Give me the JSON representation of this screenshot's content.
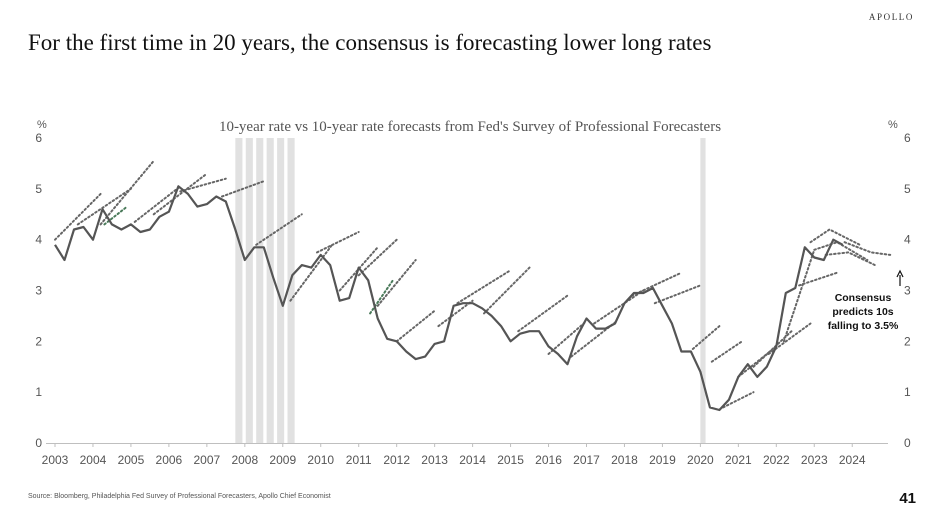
{
  "header": {
    "brand": "APOLLO",
    "title": "For the first time in 20 years, the consensus is forecasting lower long rates"
  },
  "footer": {
    "source": "Source: Bloomberg, Philadelphia Fed Survey of Professional Forecasters, Apollo Chief Economist",
    "page_number": "41"
  },
  "chart_data": {
    "type": "line",
    "title": "10-year rate vs 10-year rate forecasts from Fed's Survey of Professional Forecasters",
    "y_unit_label": "%",
    "ylim": [
      0,
      6
    ],
    "xlim": [
      2003,
      2025.1
    ],
    "y_ticks": [
      0,
      1,
      2,
      3,
      4,
      5,
      6
    ],
    "x_ticks": [
      2003,
      2004,
      2005,
      2006,
      2007,
      2008,
      2009,
      2010,
      2011,
      2012,
      2013,
      2014,
      2015,
      2016,
      2017,
      2018,
      2019,
      2020,
      2021,
      2022,
      2023,
      2024
    ],
    "grid": false,
    "recessions": [
      [
        2007.75,
        2009.4
      ],
      [
        2020.0,
        2020.2
      ]
    ],
    "annotation": {
      "lines": [
        "Consensus",
        "predicts 10s",
        "falling to 3.5%"
      ]
    },
    "colors": {
      "actual": "#555555",
      "forecast": "#666666",
      "forecast_green": "#4a7a5a",
      "recession": "#e1e1e1"
    },
    "series": [
      {
        "role": "actual",
        "x": [
          2003.0,
          2003.25,
          2003.5,
          2003.75,
          2004.0,
          2004.25,
          2004.5,
          2004.75,
          2005.0,
          2005.25,
          2005.5,
          2005.75,
          2006.0,
          2006.25,
          2006.5,
          2006.75,
          2007.0,
          2007.25,
          2007.5,
          2007.75,
          2008.0,
          2008.25,
          2008.5,
          2008.75,
          2009.0,
          2009.25,
          2009.5,
          2009.75,
          2010.0,
          2010.25,
          2010.5,
          2010.75,
          2011.0,
          2011.25,
          2011.5,
          2011.75,
          2012.0,
          2012.25,
          2012.5,
          2012.75,
          2013.0,
          2013.25,
          2013.5,
          2013.75,
          2014.0,
          2014.25,
          2014.5,
          2014.75,
          2015.0,
          2015.25,
          2015.5,
          2015.75,
          2016.0,
          2016.25,
          2016.5,
          2016.75,
          2017.0,
          2017.25,
          2017.5,
          2017.75,
          2018.0,
          2018.25,
          2018.5,
          2018.75,
          2019.0,
          2019.25,
          2019.5,
          2019.75,
          2020.0,
          2020.25,
          2020.5,
          2020.75,
          2021.0,
          2021.25,
          2021.5,
          2021.75,
          2022.0,
          2022.25,
          2022.5,
          2022.75,
          2023.0,
          2023.25,
          2023.5,
          2023.75
        ],
        "y": [
          3.9,
          3.6,
          4.2,
          4.25,
          4.0,
          4.6,
          4.3,
          4.2,
          4.3,
          4.15,
          4.2,
          4.45,
          4.55,
          5.05,
          4.9,
          4.65,
          4.7,
          4.85,
          4.75,
          4.2,
          3.6,
          3.85,
          3.85,
          3.25,
          2.7,
          3.3,
          3.5,
          3.45,
          3.7,
          3.5,
          2.8,
          2.85,
          3.45,
          3.2,
          2.45,
          2.05,
          2.0,
          1.8,
          1.65,
          1.7,
          1.95,
          2.0,
          2.7,
          2.75,
          2.75,
          2.65,
          2.5,
          2.3,
          2.0,
          2.15,
          2.2,
          2.2,
          1.9,
          1.75,
          1.55,
          2.1,
          2.45,
          2.25,
          2.25,
          2.35,
          2.75,
          2.95,
          2.95,
          3.05,
          2.7,
          2.35,
          1.8,
          1.8,
          1.4,
          0.7,
          0.65,
          0.85,
          1.3,
          1.55,
          1.3,
          1.5,
          1.9,
          2.95,
          3.05,
          3.85,
          3.65,
          3.6,
          4.0,
          3.9
        ]
      },
      {
        "role": "forecast",
        "x": [
          2003.0,
          2004.2
        ],
        "y": [
          4.0,
          4.9
        ]
      },
      {
        "role": "forecast",
        "x": [
          2003.6,
          2005.0
        ],
        "y": [
          4.3,
          5.0
        ]
      },
      {
        "role": "forecast",
        "x": [
          2004.2,
          2005.6
        ],
        "y": [
          4.3,
          5.55
        ]
      },
      {
        "role": "forecast",
        "x": [
          2005.1,
          2006.3
        ],
        "y": [
          4.35,
          5.05
        ]
      },
      {
        "role": "forecast",
        "x": [
          2005.6,
          2007.0
        ],
        "y": [
          4.5,
          5.3
        ]
      },
      {
        "role": "forecast",
        "x": [
          2006.3,
          2007.5
        ],
        "y": [
          4.95,
          5.2
        ]
      },
      {
        "role": "forecast",
        "x": [
          2007.4,
          2008.5
        ],
        "y": [
          4.85,
          5.15
        ]
      },
      {
        "role": "forecast",
        "x": [
          2008.3,
          2009.5
        ],
        "y": [
          3.9,
          4.5
        ]
      },
      {
        "role": "forecast",
        "x": [
          2009.2,
          2010.3
        ],
        "y": [
          2.8,
          3.9
        ]
      },
      {
        "role": "forecast",
        "x": [
          2009.9,
          2011.0
        ],
        "y": [
          3.75,
          4.15
        ]
      },
      {
        "role": "forecast",
        "x": [
          2010.5,
          2011.5
        ],
        "y": [
          3.0,
          3.85
        ]
      },
      {
        "role": "forecast",
        "x": [
          2011.0,
          2012.0
        ],
        "y": [
          3.3,
          4.0
        ]
      },
      {
        "role": "forecast",
        "x": [
          2011.5,
          2012.5
        ],
        "y": [
          2.7,
          3.6
        ]
      },
      {
        "role": "forecast",
        "x": [
          2012.0,
          2013.0
        ],
        "y": [
          2.0,
          2.6
        ]
      },
      {
        "role": "forecast",
        "x": [
          2013.1,
          2014.0
        ],
        "y": [
          2.3,
          2.8
        ]
      },
      {
        "role": "forecast",
        "x": [
          2013.6,
          2015.0
        ],
        "y": [
          2.75,
          3.4
        ]
      },
      {
        "role": "forecast",
        "x": [
          2014.3,
          2015.5
        ],
        "y": [
          2.55,
          3.45
        ]
      },
      {
        "role": "forecast",
        "x": [
          2015.2,
          2016.5
        ],
        "y": [
          2.2,
          2.9
        ]
      },
      {
        "role": "forecast",
        "x": [
          2016.0,
          2017.0
        ],
        "y": [
          1.75,
          2.4
        ]
      },
      {
        "role": "forecast",
        "x": [
          2016.6,
          2017.8
        ],
        "y": [
          1.7,
          2.4
        ]
      },
      {
        "role": "forecast",
        "x": [
          2017.2,
          2018.5
        ],
        "y": [
          2.35,
          3.0
        ]
      },
      {
        "role": "forecast",
        "x": [
          2018.2,
          2019.5
        ],
        "y": [
          2.9,
          3.35
        ]
      },
      {
        "role": "forecast",
        "x": [
          2018.8,
          2020.0
        ],
        "y": [
          2.75,
          3.1
        ]
      },
      {
        "role": "forecast",
        "x": [
          2019.8,
          2020.5
        ],
        "y": [
          1.85,
          2.3
        ]
      },
      {
        "role": "forecast",
        "x": [
          2020.3,
          2021.1
        ],
        "y": [
          1.6,
          2.0
        ]
      },
      {
        "role": "forecast",
        "x": [
          2020.6,
          2021.4
        ],
        "y": [
          0.7,
          1.0
        ]
      },
      {
        "role": "forecast",
        "x": [
          2021.0,
          2022.0
        ],
        "y": [
          1.3,
          1.9
        ]
      },
      {
        "role": "forecast",
        "x": [
          2021.4,
          2022.4
        ],
        "y": [
          1.5,
          2.2
        ]
      },
      {
        "role": "forecast",
        "x": [
          2021.8,
          2022.9
        ],
        "y": [
          1.75,
          2.35
        ]
      },
      {
        "role": "forecast",
        "x": [
          2022.2,
          2023.0
        ],
        "y": [
          2.0,
          3.8
        ]
      },
      {
        "role": "forecast",
        "x": [
          2022.6,
          2023.6
        ],
        "y": [
          3.1,
          3.35
        ]
      },
      {
        "role": "forecast",
        "x": [
          2022.9,
          2023.4,
          2024.2
        ],
        "y": [
          3.95,
          4.2,
          3.9
        ]
      },
      {
        "role": "forecast",
        "x": [
          2023.0,
          2023.6,
          2024.4
        ],
        "y": [
          3.8,
          3.95,
          3.6
        ]
      },
      {
        "role": "forecast",
        "x": [
          2023.3,
          2023.9,
          2024.6
        ],
        "y": [
          3.7,
          3.75,
          3.5
        ]
      },
      {
        "role": "forecast",
        "x": [
          2023.8,
          2024.5,
          2025.0
        ],
        "y": [
          3.95,
          3.75,
          3.7
        ]
      },
      {
        "role": "forecast_green",
        "x": [
          2004.3,
          2004.9
        ],
        "y": [
          4.3,
          4.65
        ]
      },
      {
        "role": "forecast_green",
        "x": [
          2011.3,
          2011.9
        ],
        "y": [
          2.55,
          3.2
        ]
      }
    ]
  }
}
